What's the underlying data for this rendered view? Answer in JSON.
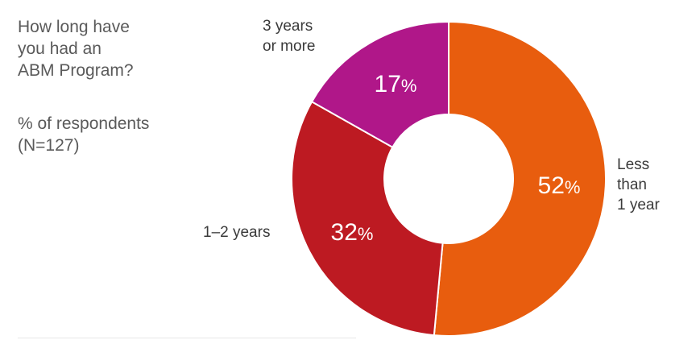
{
  "title": "How long have\nyou had an\nABM Program?",
  "subtitle": "% of respondents\n(N=127)",
  "chart_data": {
    "type": "pie",
    "title": "How long have you had an ABM Program?",
    "subtitle": "% of respondents (N=127)",
    "unit": "%",
    "slices": [
      {
        "label": "Less than 1 year",
        "label_lines": [
          "Less",
          "than",
          "1 year"
        ],
        "value": 52,
        "color": "#e85d0e"
      },
      {
        "label": "1–2 years",
        "label_lines": [
          "1–2 years"
        ],
        "value": 32,
        "color": "#bd1a22"
      },
      {
        "label": "3 years or more",
        "label_lines": [
          "3 years",
          "or more"
        ],
        "value": 17,
        "color": "#b01789"
      }
    ]
  }
}
